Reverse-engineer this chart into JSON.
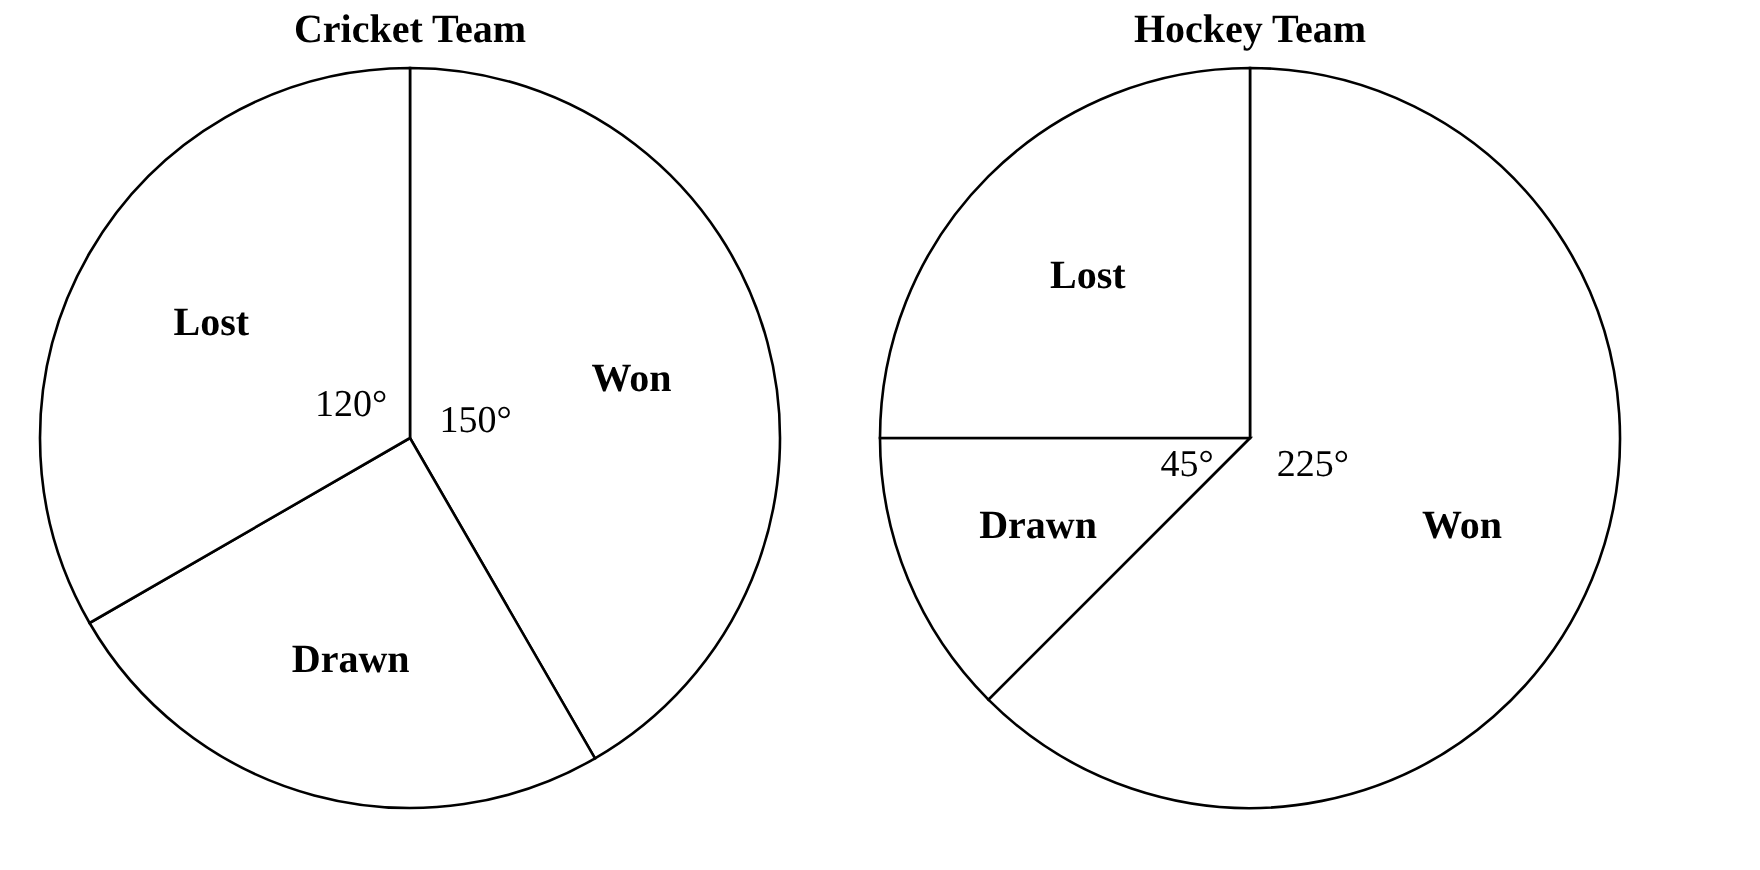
{
  "chart_data": [
    {
      "type": "pie",
      "title": "Cricket Team",
      "categories": [
        "Won",
        "Drawn",
        "Lost"
      ],
      "values": [
        150,
        90,
        120
      ],
      "value_labels": [
        "150°",
        null,
        "120°"
      ],
      "colors": [
        "#ffffff",
        "#ffffff",
        "#ffffff"
      ]
    },
    {
      "type": "pie",
      "title": "Hockey Team",
      "categories": [
        "Won",
        "Drawn",
        "Lost"
      ],
      "values": [
        225,
        45,
        90
      ],
      "value_labels": [
        "225°",
        "45°",
        null
      ],
      "colors": [
        "#ffffff",
        "#ffffff",
        "#ffffff"
      ]
    }
  ]
}
